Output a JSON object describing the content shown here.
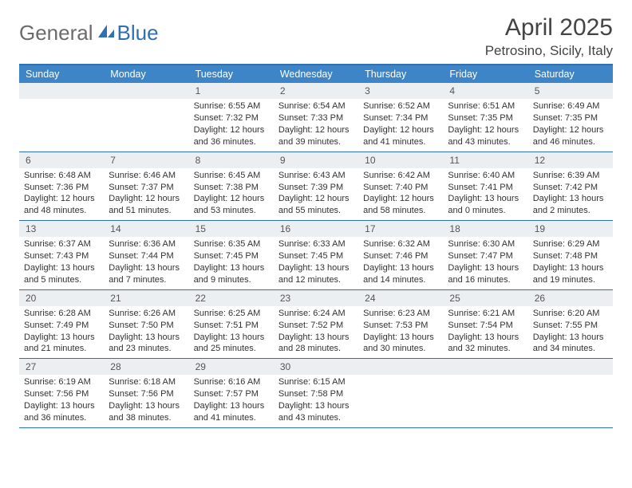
{
  "logo": {
    "part1": "General",
    "part2": "Blue"
  },
  "title": "April 2025",
  "subtitle": "Petrosino, Sicily, Italy",
  "colors": {
    "header_bg": "#3d85c6",
    "header_border": "#2f6fb3",
    "daynum_bg": "#eceff1",
    "text": "#333333",
    "logo_gray": "#6b6b6b",
    "logo_blue": "#2f6fb3"
  },
  "typography": {
    "title_fontsize": 30,
    "subtitle_fontsize": 17,
    "header_fontsize": 12.5,
    "body_fontsize": 11
  },
  "day_names": [
    "Sunday",
    "Monday",
    "Tuesday",
    "Wednesday",
    "Thursday",
    "Friday",
    "Saturday"
  ],
  "weeks": [
    [
      {
        "n": "",
        "lines": [
          "",
          "",
          "",
          ""
        ]
      },
      {
        "n": "",
        "lines": [
          "",
          "",
          "",
          ""
        ]
      },
      {
        "n": "1",
        "lines": [
          "Sunrise: 6:55 AM",
          "Sunset: 7:32 PM",
          "Daylight: 12 hours",
          "and 36 minutes."
        ]
      },
      {
        "n": "2",
        "lines": [
          "Sunrise: 6:54 AM",
          "Sunset: 7:33 PM",
          "Daylight: 12 hours",
          "and 39 minutes."
        ]
      },
      {
        "n": "3",
        "lines": [
          "Sunrise: 6:52 AM",
          "Sunset: 7:34 PM",
          "Daylight: 12 hours",
          "and 41 minutes."
        ]
      },
      {
        "n": "4",
        "lines": [
          "Sunrise: 6:51 AM",
          "Sunset: 7:35 PM",
          "Daylight: 12 hours",
          "and 43 minutes."
        ]
      },
      {
        "n": "5",
        "lines": [
          "Sunrise: 6:49 AM",
          "Sunset: 7:35 PM",
          "Daylight: 12 hours",
          "and 46 minutes."
        ]
      }
    ],
    [
      {
        "n": "6",
        "lines": [
          "Sunrise: 6:48 AM",
          "Sunset: 7:36 PM",
          "Daylight: 12 hours",
          "and 48 minutes."
        ]
      },
      {
        "n": "7",
        "lines": [
          "Sunrise: 6:46 AM",
          "Sunset: 7:37 PM",
          "Daylight: 12 hours",
          "and 51 minutes."
        ]
      },
      {
        "n": "8",
        "lines": [
          "Sunrise: 6:45 AM",
          "Sunset: 7:38 PM",
          "Daylight: 12 hours",
          "and 53 minutes."
        ]
      },
      {
        "n": "9",
        "lines": [
          "Sunrise: 6:43 AM",
          "Sunset: 7:39 PM",
          "Daylight: 12 hours",
          "and 55 minutes."
        ]
      },
      {
        "n": "10",
        "lines": [
          "Sunrise: 6:42 AM",
          "Sunset: 7:40 PM",
          "Daylight: 12 hours",
          "and 58 minutes."
        ]
      },
      {
        "n": "11",
        "lines": [
          "Sunrise: 6:40 AM",
          "Sunset: 7:41 PM",
          "Daylight: 13 hours",
          "and 0 minutes."
        ]
      },
      {
        "n": "12",
        "lines": [
          "Sunrise: 6:39 AM",
          "Sunset: 7:42 PM",
          "Daylight: 13 hours",
          "and 2 minutes."
        ]
      }
    ],
    [
      {
        "n": "13",
        "lines": [
          "Sunrise: 6:37 AM",
          "Sunset: 7:43 PM",
          "Daylight: 13 hours",
          "and 5 minutes."
        ]
      },
      {
        "n": "14",
        "lines": [
          "Sunrise: 6:36 AM",
          "Sunset: 7:44 PM",
          "Daylight: 13 hours",
          "and 7 minutes."
        ]
      },
      {
        "n": "15",
        "lines": [
          "Sunrise: 6:35 AM",
          "Sunset: 7:45 PM",
          "Daylight: 13 hours",
          "and 9 minutes."
        ]
      },
      {
        "n": "16",
        "lines": [
          "Sunrise: 6:33 AM",
          "Sunset: 7:45 PM",
          "Daylight: 13 hours",
          "and 12 minutes."
        ]
      },
      {
        "n": "17",
        "lines": [
          "Sunrise: 6:32 AM",
          "Sunset: 7:46 PM",
          "Daylight: 13 hours",
          "and 14 minutes."
        ]
      },
      {
        "n": "18",
        "lines": [
          "Sunrise: 6:30 AM",
          "Sunset: 7:47 PM",
          "Daylight: 13 hours",
          "and 16 minutes."
        ]
      },
      {
        "n": "19",
        "lines": [
          "Sunrise: 6:29 AM",
          "Sunset: 7:48 PM",
          "Daylight: 13 hours",
          "and 19 minutes."
        ]
      }
    ],
    [
      {
        "n": "20",
        "lines": [
          "Sunrise: 6:28 AM",
          "Sunset: 7:49 PM",
          "Daylight: 13 hours",
          "and 21 minutes."
        ]
      },
      {
        "n": "21",
        "lines": [
          "Sunrise: 6:26 AM",
          "Sunset: 7:50 PM",
          "Daylight: 13 hours",
          "and 23 minutes."
        ]
      },
      {
        "n": "22",
        "lines": [
          "Sunrise: 6:25 AM",
          "Sunset: 7:51 PM",
          "Daylight: 13 hours",
          "and 25 minutes."
        ]
      },
      {
        "n": "23",
        "lines": [
          "Sunrise: 6:24 AM",
          "Sunset: 7:52 PM",
          "Daylight: 13 hours",
          "and 28 minutes."
        ]
      },
      {
        "n": "24",
        "lines": [
          "Sunrise: 6:23 AM",
          "Sunset: 7:53 PM",
          "Daylight: 13 hours",
          "and 30 minutes."
        ]
      },
      {
        "n": "25",
        "lines": [
          "Sunrise: 6:21 AM",
          "Sunset: 7:54 PM",
          "Daylight: 13 hours",
          "and 32 minutes."
        ]
      },
      {
        "n": "26",
        "lines": [
          "Sunrise: 6:20 AM",
          "Sunset: 7:55 PM",
          "Daylight: 13 hours",
          "and 34 minutes."
        ]
      }
    ],
    [
      {
        "n": "27",
        "lines": [
          "Sunrise: 6:19 AM",
          "Sunset: 7:56 PM",
          "Daylight: 13 hours",
          "and 36 minutes."
        ]
      },
      {
        "n": "28",
        "lines": [
          "Sunrise: 6:18 AM",
          "Sunset: 7:56 PM",
          "Daylight: 13 hours",
          "and 38 minutes."
        ]
      },
      {
        "n": "29",
        "lines": [
          "Sunrise: 6:16 AM",
          "Sunset: 7:57 PM",
          "Daylight: 13 hours",
          "and 41 minutes."
        ]
      },
      {
        "n": "30",
        "lines": [
          "Sunrise: 6:15 AM",
          "Sunset: 7:58 PM",
          "Daylight: 13 hours",
          "and 43 minutes."
        ]
      },
      {
        "n": "",
        "lines": [
          "",
          "",
          "",
          ""
        ]
      },
      {
        "n": "",
        "lines": [
          "",
          "",
          "",
          ""
        ]
      },
      {
        "n": "",
        "lines": [
          "",
          "",
          "",
          ""
        ]
      }
    ]
  ]
}
